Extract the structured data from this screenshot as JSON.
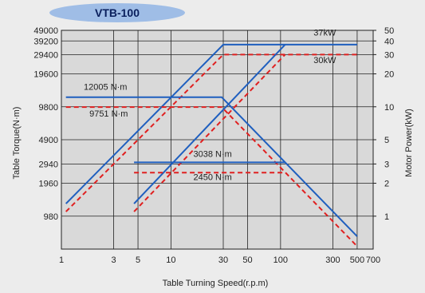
{
  "chart_data": {
    "type": "line",
    "title": "VTB-100",
    "xlabel": "Table Turning Speed(r.p.m)",
    "ylabel_left": "Table Torque(N·m)",
    "ylabel_right": "Motor Power(kW)",
    "x_scale": "log",
    "xlim": [
      1,
      700
    ],
    "x_ticks": [
      1,
      3,
      5,
      10,
      30,
      50,
      100,
      300,
      500,
      700
    ],
    "x_tick_labels": [
      "1",
      "3",
      "5",
      "10",
      "30",
      "50",
      "100",
      "300",
      "500",
      "700"
    ],
    "y_left_scale": "log",
    "ylim_left": [
      490,
      49000
    ],
    "y_left_ticks": [
      980,
      1960,
      2940,
      4900,
      9800,
      19600,
      29400,
      39200,
      49000
    ],
    "y_left_tick_labels": [
      "980",
      "1960",
      "2940",
      "4900",
      "9800",
      "19600",
      "29400",
      "39200",
      "49000"
    ],
    "y_right_scale": "log",
    "ylim_right": [
      0.5,
      50
    ],
    "y_right_ticks": [
      1,
      2,
      3,
      5,
      10,
      20,
      30,
      40,
      50
    ],
    "y_right_tick_labels": [
      "1",
      "2",
      "3",
      "5",
      "10",
      "20",
      "30",
      "40",
      "50"
    ],
    "grid": true,
    "series": [
      {
        "name": "",
        "axis": "right",
        "color": "#1f5fbf",
        "dash": false,
        "points": [
          [
            1.1,
            1.3
          ],
          [
            30,
            37
          ],
          [
            500,
            37
          ]
        ]
      },
      {
        "name": "",
        "axis": "right",
        "color": "#e02020",
        "dash": true,
        "points": [
          [
            1.1,
            1.1
          ],
          [
            30,
            30
          ],
          [
            500,
            30
          ]
        ]
      },
      {
        "name": "",
        "axis": "left",
        "color": "#1f5fbf",
        "dash": false,
        "points": [
          [
            1.1,
            12005
          ],
          [
            29,
            12005
          ],
          [
            500,
            640
          ]
        ]
      },
      {
        "name": "",
        "axis": "left",
        "color": "#e02020",
        "dash": true,
        "points": [
          [
            1.1,
            9751
          ],
          [
            29,
            9751
          ],
          [
            500,
            520
          ]
        ]
      },
      {
        "name": "",
        "axis": "right",
        "color": "#1f5fbf",
        "dash": false,
        "points": [
          [
            4.6,
            1.3
          ],
          [
            110,
            37
          ]
        ]
      },
      {
        "name": "",
        "axis": "right",
        "color": "#e02020",
        "dash": true,
        "points": [
          [
            4.6,
            1.1
          ],
          [
            110,
            30
          ]
        ]
      },
      {
        "name": "",
        "axis": "left",
        "color": "#1f5fbf",
        "dash": false,
        "points": [
          [
            4.6,
            3038
          ],
          [
            110,
            3038
          ]
        ]
      },
      {
        "name": "",
        "axis": "left",
        "color": "#e02020",
        "dash": true,
        "points": [
          [
            4.6,
            2450
          ],
          [
            110,
            2450
          ]
        ]
      }
    ],
    "annotations": [
      {
        "id": "ann-37kw",
        "text": "37kW",
        "x": 200,
        "y": 44000,
        "axis": "left"
      },
      {
        "id": "ann-30kw",
        "text": "30kW",
        "x": 200,
        "y": 24500,
        "axis": "left"
      },
      {
        "id": "ann-12005",
        "text": "12005 N·m",
        "x": 1.6,
        "y": 14000,
        "axis": "left"
      },
      {
        "id": "ann-9751",
        "text": "9751 N·m",
        "x": 1.8,
        "y": 8000,
        "axis": "left"
      },
      {
        "id": "ann-3038",
        "text": "3038 N·m",
        "x": 16,
        "y": 3400,
        "axis": "left"
      },
      {
        "id": "ann-2450",
        "text": "2450 N·m",
        "x": 16,
        "y": 2100,
        "axis": "left"
      }
    ]
  }
}
